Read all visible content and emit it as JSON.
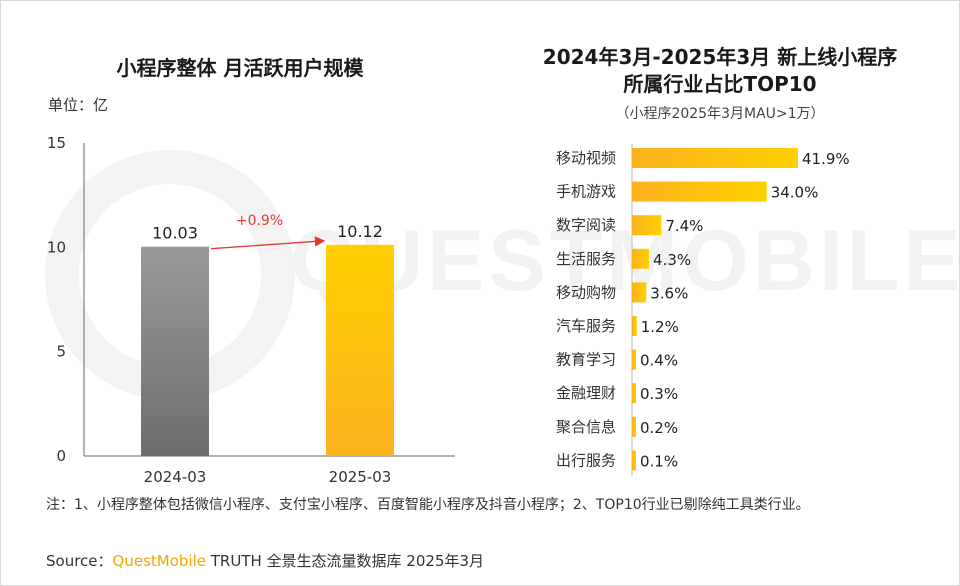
{
  "left_chart": {
    "title": "小程序整体 月活跃用户规模",
    "unit": "单位：亿",
    "growth_label": "+0.9%"
  },
  "right_chart": {
    "title_line1": "2024年3月-2025年3月 新上线小程序",
    "title_line2": "所属行业占比TOP10",
    "subtitle": "（小程序2025年3月MAU>1万）"
  },
  "note": "注：1、小程序整体包括微信小程序、支付宝小程序、百度智能小程序及抖音小程序；2、TOP10行业已剔除纯工具类行业。",
  "source": {
    "prefix": "Source：",
    "brand": "QuestMobile",
    "rest": " TRUTH 全景生态流量数据库 2025年3月"
  },
  "watermark": "QUESTMOBILE",
  "colors": {
    "gray_top": "#9a9a9a",
    "gray_bottom": "#6d6d6d",
    "gold_top": "#ffd000",
    "gold_bottom": "#fbb21d",
    "growth_arrow": "#e53935"
  },
  "chart_data": [
    {
      "type": "bar",
      "title": "小程序整体 月活跃用户规模",
      "ylabel": "单位：亿",
      "categories": [
        "2024-03",
        "2025-03"
      ],
      "values": [
        10.03,
        10.12
      ],
      "value_labels": [
        "10.03",
        "10.12"
      ],
      "yticks": [
        0,
        5,
        10,
        15
      ],
      "ylim": [
        0,
        15
      ],
      "annotation": "+0.9%"
    },
    {
      "type": "bar",
      "orientation": "horizontal",
      "title": "2024年3月-2025年3月 新上线小程序所属行业占比TOP10",
      "subtitle": "（小程序2025年3月MAU>1万）",
      "categories": [
        "移动视频",
        "手机游戏",
        "数字阅读",
        "生活服务",
        "移动购物",
        "汽车服务",
        "教育学习",
        "金融理财",
        "聚合信息",
        "出行服务"
      ],
      "values": [
        41.9,
        34.0,
        7.4,
        4.3,
        3.6,
        1.2,
        0.4,
        0.3,
        0.2,
        0.1
      ],
      "value_labels": [
        "41.9%",
        "34.0%",
        "7.4%",
        "4.3%",
        "3.6%",
        "1.2%",
        "0.4%",
        "0.3%",
        "0.2%",
        "0.1%"
      ]
    }
  ]
}
